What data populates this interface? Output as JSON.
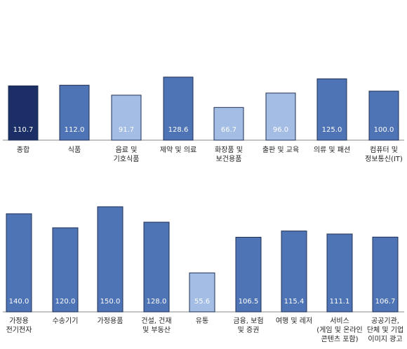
{
  "chart_data": [
    {
      "type": "bar",
      "categories": [
        "종합",
        "식품",
        "음료 및\n기호식품",
        "제약 및 의료",
        "화장품 및\n보건용품",
        "출판 및 교육",
        "의류 및 패션",
        "컴퓨터 및\n정보통신(IT)"
      ],
      "values": [
        110.7,
        112.0,
        91.7,
        128.6,
        66.7,
        96.0,
        125.0,
        100.0
      ],
      "labels": [
        "110.7",
        "112.0",
        "91.7",
        "128.6",
        "66.7",
        "96.0",
        "125.0",
        "100.0"
      ],
      "ylim": [
        0,
        150
      ],
      "bar_colors": [
        "#1b2f66",
        "#4f74b5",
        "#a4bde4",
        "#4f74b5",
        "#a4bde4",
        "#a4bde4",
        "#4f74b5",
        "#4f74b5"
      ],
      "bar_border": "#1f2f55",
      "grid": false
    },
    {
      "type": "bar",
      "categories": [
        "가정용\n전기전자",
        "수송기기",
        "가정용품",
        "건설, 건재\n및 부동산",
        "유통",
        "금융, 보험\n및 증권",
        "여행 및 레저",
        "서비스\n(게임 및 온라인\n콘텐츠 포함)",
        "공공기관,\n단체 및 기업\n이미지 광고"
      ],
      "values": [
        140.0,
        120.0,
        150.0,
        128.0,
        55.6,
        106.5,
        115.4,
        111.1,
        106.7
      ],
      "labels": [
        "140.0",
        "120.0",
        "150.0",
        "128.0",
        "55.6",
        "106.5",
        "115.4",
        "111.1",
        "106.7"
      ],
      "ylim": [
        0,
        150
      ],
      "bar_colors": [
        "#4f74b5",
        "#4f74b5",
        "#4f74b5",
        "#4f74b5",
        "#a4bde4",
        "#4f74b5",
        "#4f74b5",
        "#4f74b5",
        "#4f74b5"
      ],
      "bar_border": "#1f2f55",
      "grid": false
    }
  ]
}
